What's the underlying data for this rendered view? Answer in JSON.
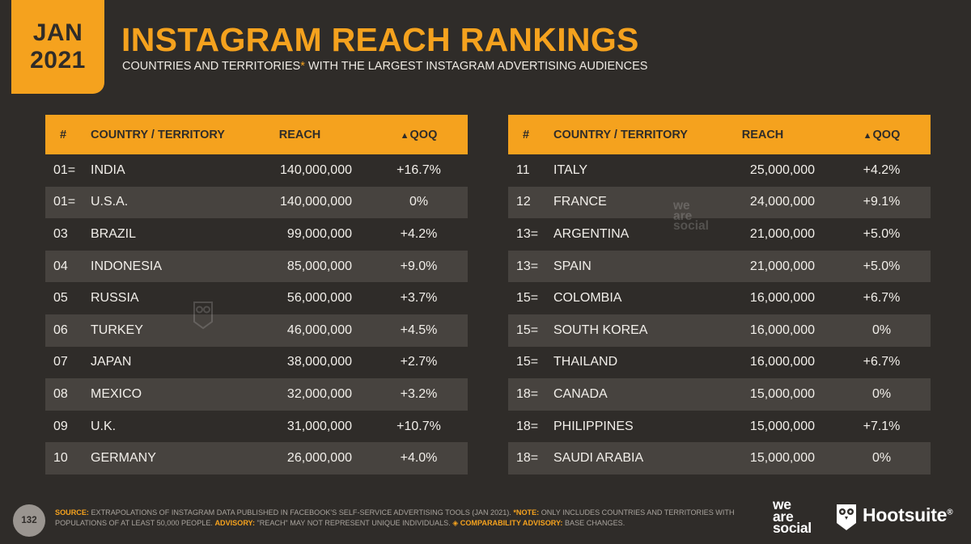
{
  "badge": {
    "month": "JAN",
    "year": "2021"
  },
  "title": "INSTAGRAM REACH RANKINGS",
  "subtitle": {
    "before": "COUNTRIES AND TERRITORIES",
    "asterisk": "*",
    "after": " WITH THE LARGEST INSTAGRAM ADVERTISING AUDIENCES"
  },
  "table_headers": {
    "rank": "#",
    "country": "COUNTRY / TERRITORY",
    "reach": "REACH",
    "qoq_symbol": "▲",
    "qoq": "QOQ"
  },
  "left_rows": [
    {
      "rank": "01=",
      "country": "INDIA",
      "reach": "140,000,000",
      "qoq": "+16.7%"
    },
    {
      "rank": "01=",
      "country": "U.S.A.",
      "reach": "140,000,000",
      "qoq": "0%"
    },
    {
      "rank": "03",
      "country": "BRAZIL",
      "reach": "99,000,000",
      "qoq": "+4.2%"
    },
    {
      "rank": "04",
      "country": "INDONESIA",
      "reach": "85,000,000",
      "qoq": "+9.0%"
    },
    {
      "rank": "05",
      "country": "RUSSIA",
      "reach": "56,000,000",
      "qoq": "+3.7%"
    },
    {
      "rank": "06",
      "country": "TURKEY",
      "reach": "46,000,000",
      "qoq": "+4.5%"
    },
    {
      "rank": "07",
      "country": "JAPAN",
      "reach": "38,000,000",
      "qoq": "+2.7%"
    },
    {
      "rank": "08",
      "country": "MEXICO",
      "reach": "32,000,000",
      "qoq": "+3.2%"
    },
    {
      "rank": "09",
      "country": "U.K.",
      "reach": "31,000,000",
      "qoq": "+10.7%"
    },
    {
      "rank": "10",
      "country": "GERMANY",
      "reach": "26,000,000",
      "qoq": "+4.0%"
    }
  ],
  "right_rows": [
    {
      "rank": "11",
      "country": "ITALY",
      "reach": "25,000,000",
      "qoq": "+4.2%"
    },
    {
      "rank": "12",
      "country": "FRANCE",
      "reach": "24,000,000",
      "qoq": "+9.1%"
    },
    {
      "rank": "13=",
      "country": "ARGENTINA",
      "reach": "21,000,000",
      "qoq": "+5.0%"
    },
    {
      "rank": "13=",
      "country": "SPAIN",
      "reach": "21,000,000",
      "qoq": "+5.0%"
    },
    {
      "rank": "15=",
      "country": "COLOMBIA",
      "reach": "16,000,000",
      "qoq": "+6.7%"
    },
    {
      "rank": "15=",
      "country": "SOUTH KOREA",
      "reach": "16,000,000",
      "qoq": "0%"
    },
    {
      "rank": "15=",
      "country": "THAILAND",
      "reach": "16,000,000",
      "qoq": "+6.7%"
    },
    {
      "rank": "18=",
      "country": "CANADA",
      "reach": "15,000,000",
      "qoq": "0%"
    },
    {
      "rank": "18=",
      "country": "PHILIPPINES",
      "reach": "15,000,000",
      "qoq": "+7.1%"
    },
    {
      "rank": "18=",
      "country": "SAUDI ARABIA",
      "reach": "15,000,000",
      "qoq": "0%"
    }
  ],
  "page_number": "132",
  "footer": {
    "source_label": "SOURCE:",
    "source_text": " EXTRAPOLATIONS OF INSTAGRAM DATA PUBLISHED IN FACEBOOK'S SELF-SERVICE ADVERTISING TOOLS (JAN 2021). ",
    "note_label": "*NOTE:",
    "note_text": " ONLY INCLUDES COUNTRIES AND TERRITORIES WITH POPULATIONS OF AT LEAST 50,000 PEOPLE. ",
    "advisory_label": "ADVISORY:",
    "advisory_text": " \"REACH\" MAY NOT REPRESENT UNIQUE INDIVIDUALS. ",
    "comparability_label": "◈ COMPARABILITY ADVISORY:",
    "comparability_text": " BASE CHANGES."
  },
  "logos": {
    "we": "we",
    "are": "are",
    "social": "social",
    "hootsuite": "Hootsuite",
    "registered": "®"
  },
  "colors": {
    "accent": "#f5a21e",
    "background": "#2f2c29",
    "row_alt": "#47433f"
  }
}
